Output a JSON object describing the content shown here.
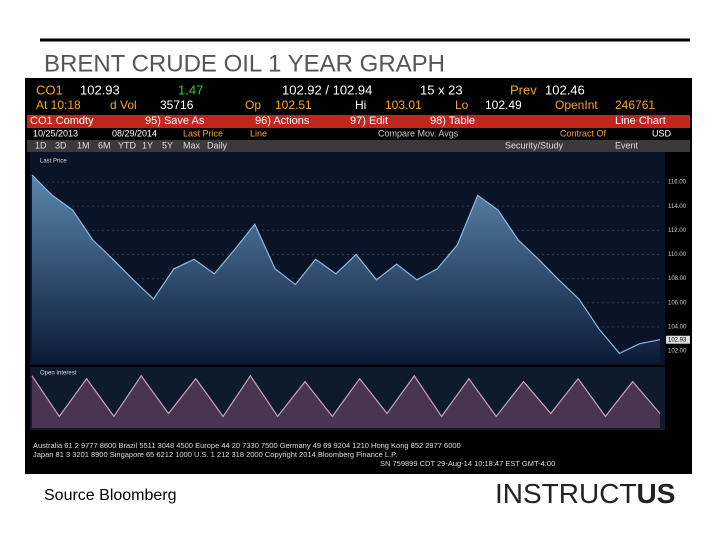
{
  "slide": {
    "title": "BRENT CRUDE OIL 1 YEAR GRAPH",
    "source": "Source Bloomberg",
    "logo_a": "INSTRUCT",
    "logo_b": "US"
  },
  "terminal": {
    "row1": [
      "CO1",
      "102.93",
      "1.47",
      "102.92 / 102.94",
      "15 x 23",
      "Prev",
      "102.46"
    ],
    "row2": [
      "At 10:18",
      "d Vol",
      "35716",
      "Op",
      "102.51",
      "Hi",
      "103.01",
      "Lo",
      "102.49",
      "OpenInt",
      "246761"
    ],
    "row3": [
      "CO1 Comdty",
      "95) Save As",
      "96) Actions",
      "97) Edit",
      "98) Table",
      "Line Chart"
    ],
    "row4": [
      "10/25/2013",
      "08/29/2014",
      "Last Price",
      "Line",
      "Compare Mov. Avgs",
      "Contract Of",
      "USD"
    ],
    "tabs": [
      "1D",
      "3D",
      "1M",
      "6M",
      "YTD",
      "1Y",
      "5Y",
      "Max",
      "Daily",
      "Security/Study",
      "Event"
    ],
    "footer": [
      "Australia 61 2 9777 8600  Brazil 5511 3048 4500  Europe 44 20 7330 7500  Germany 49 69 9204 1210  Hong Kong 852 2977 6000",
      "Japan 81 3 3201 8900  Singapore 65 6212 1000  U.S. 1 212 318 2000  Copyright 2014 Bloomberg Finance L.P.",
      "SN 759899 CDT  29-Aug-14 10:18:47 EST  GMT-4:00"
    ]
  },
  "chart_data": [
    {
      "type": "area",
      "name": "Last Price",
      "color": "#8fb8dc",
      "values": [
        116.6,
        114.9,
        113.7,
        111.2,
        109.6,
        107.9,
        106.3,
        108.8,
        109.6,
        108.4,
        110.4,
        112.5,
        108.8,
        107.5,
        109.6,
        108.4,
        110.0,
        107.9,
        109.2,
        107.9,
        108.8,
        110.8,
        114.9,
        113.7,
        111.2,
        109.6,
        107.9,
        106.3,
        103.8,
        101.8,
        102.6,
        102.93
      ],
      "ylim": [
        101,
        118
      ],
      "yticks": [
        {
          "value": 116,
          "label": "116.00"
        },
        {
          "value": 114,
          "label": "114.00"
        },
        {
          "value": 112,
          "label": "112.00"
        },
        {
          "value": 110,
          "label": "110.00"
        },
        {
          "value": 108,
          "label": "108.00"
        },
        {
          "value": 106,
          "label": "106.00"
        },
        {
          "value": 104,
          "label": "104.00"
        },
        {
          "value": 102,
          "label": "102.00"
        }
      ],
      "last_label": "102.93"
    },
    {
      "type": "area",
      "name": "Open Interest",
      "color": "#c9a0b8",
      "values": [
        9,
        2,
        8.5,
        2,
        9,
        2.5,
        8.5,
        2,
        9,
        2,
        8,
        2,
        8.5,
        2.5,
        9,
        2,
        8.5,
        2,
        8,
        2.5,
        8.5,
        2,
        8,
        2.5
      ],
      "ylim": [
        0,
        10
      ]
    }
  ]
}
